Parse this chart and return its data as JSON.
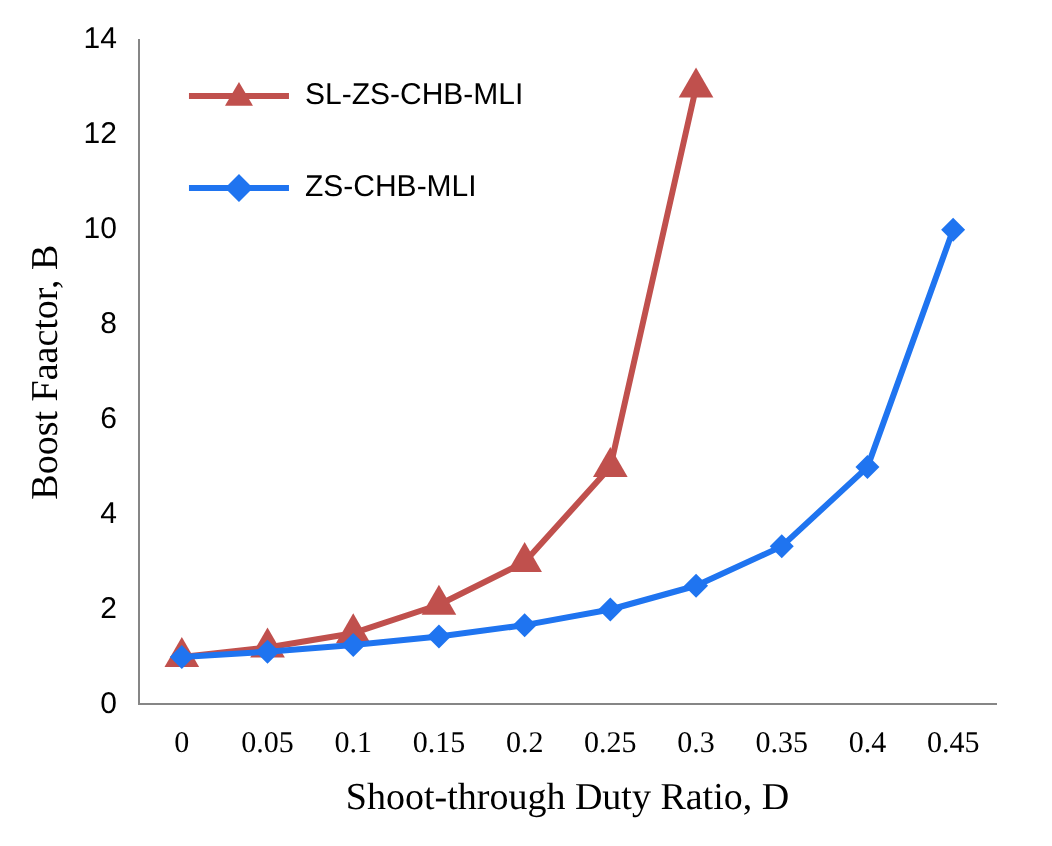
{
  "chart_data": {
    "type": "line",
    "xlabel": "Shoot-through Duty Ratio, D",
    "ylabel": "Boost Faactor, B",
    "categories": [
      "0",
      "0.05",
      "0.1",
      "0.15",
      "0.2",
      "0.25",
      "0.3",
      "0.35",
      "0.4",
      "0.45"
    ],
    "series": [
      {
        "name": "SL-ZS-CHB-MLI",
        "color": "#c0504d",
        "marker": "triangle",
        "values": [
          1,
          1.2,
          1.5,
          2.1,
          3,
          5,
          13,
          null,
          null,
          null
        ]
      },
      {
        "name": "ZS-CHB-MLI",
        "color": "#1f74f0",
        "marker": "diamond",
        "values": [
          1,
          1.11,
          1.25,
          1.43,
          1.67,
          2,
          2.5,
          3.33,
          5,
          10
        ]
      }
    ],
    "ylim": [
      0,
      14
    ],
    "yticks": [
      0,
      2,
      4,
      6,
      8,
      10,
      12,
      14
    ],
    "grid": false,
    "legend": "top left"
  }
}
